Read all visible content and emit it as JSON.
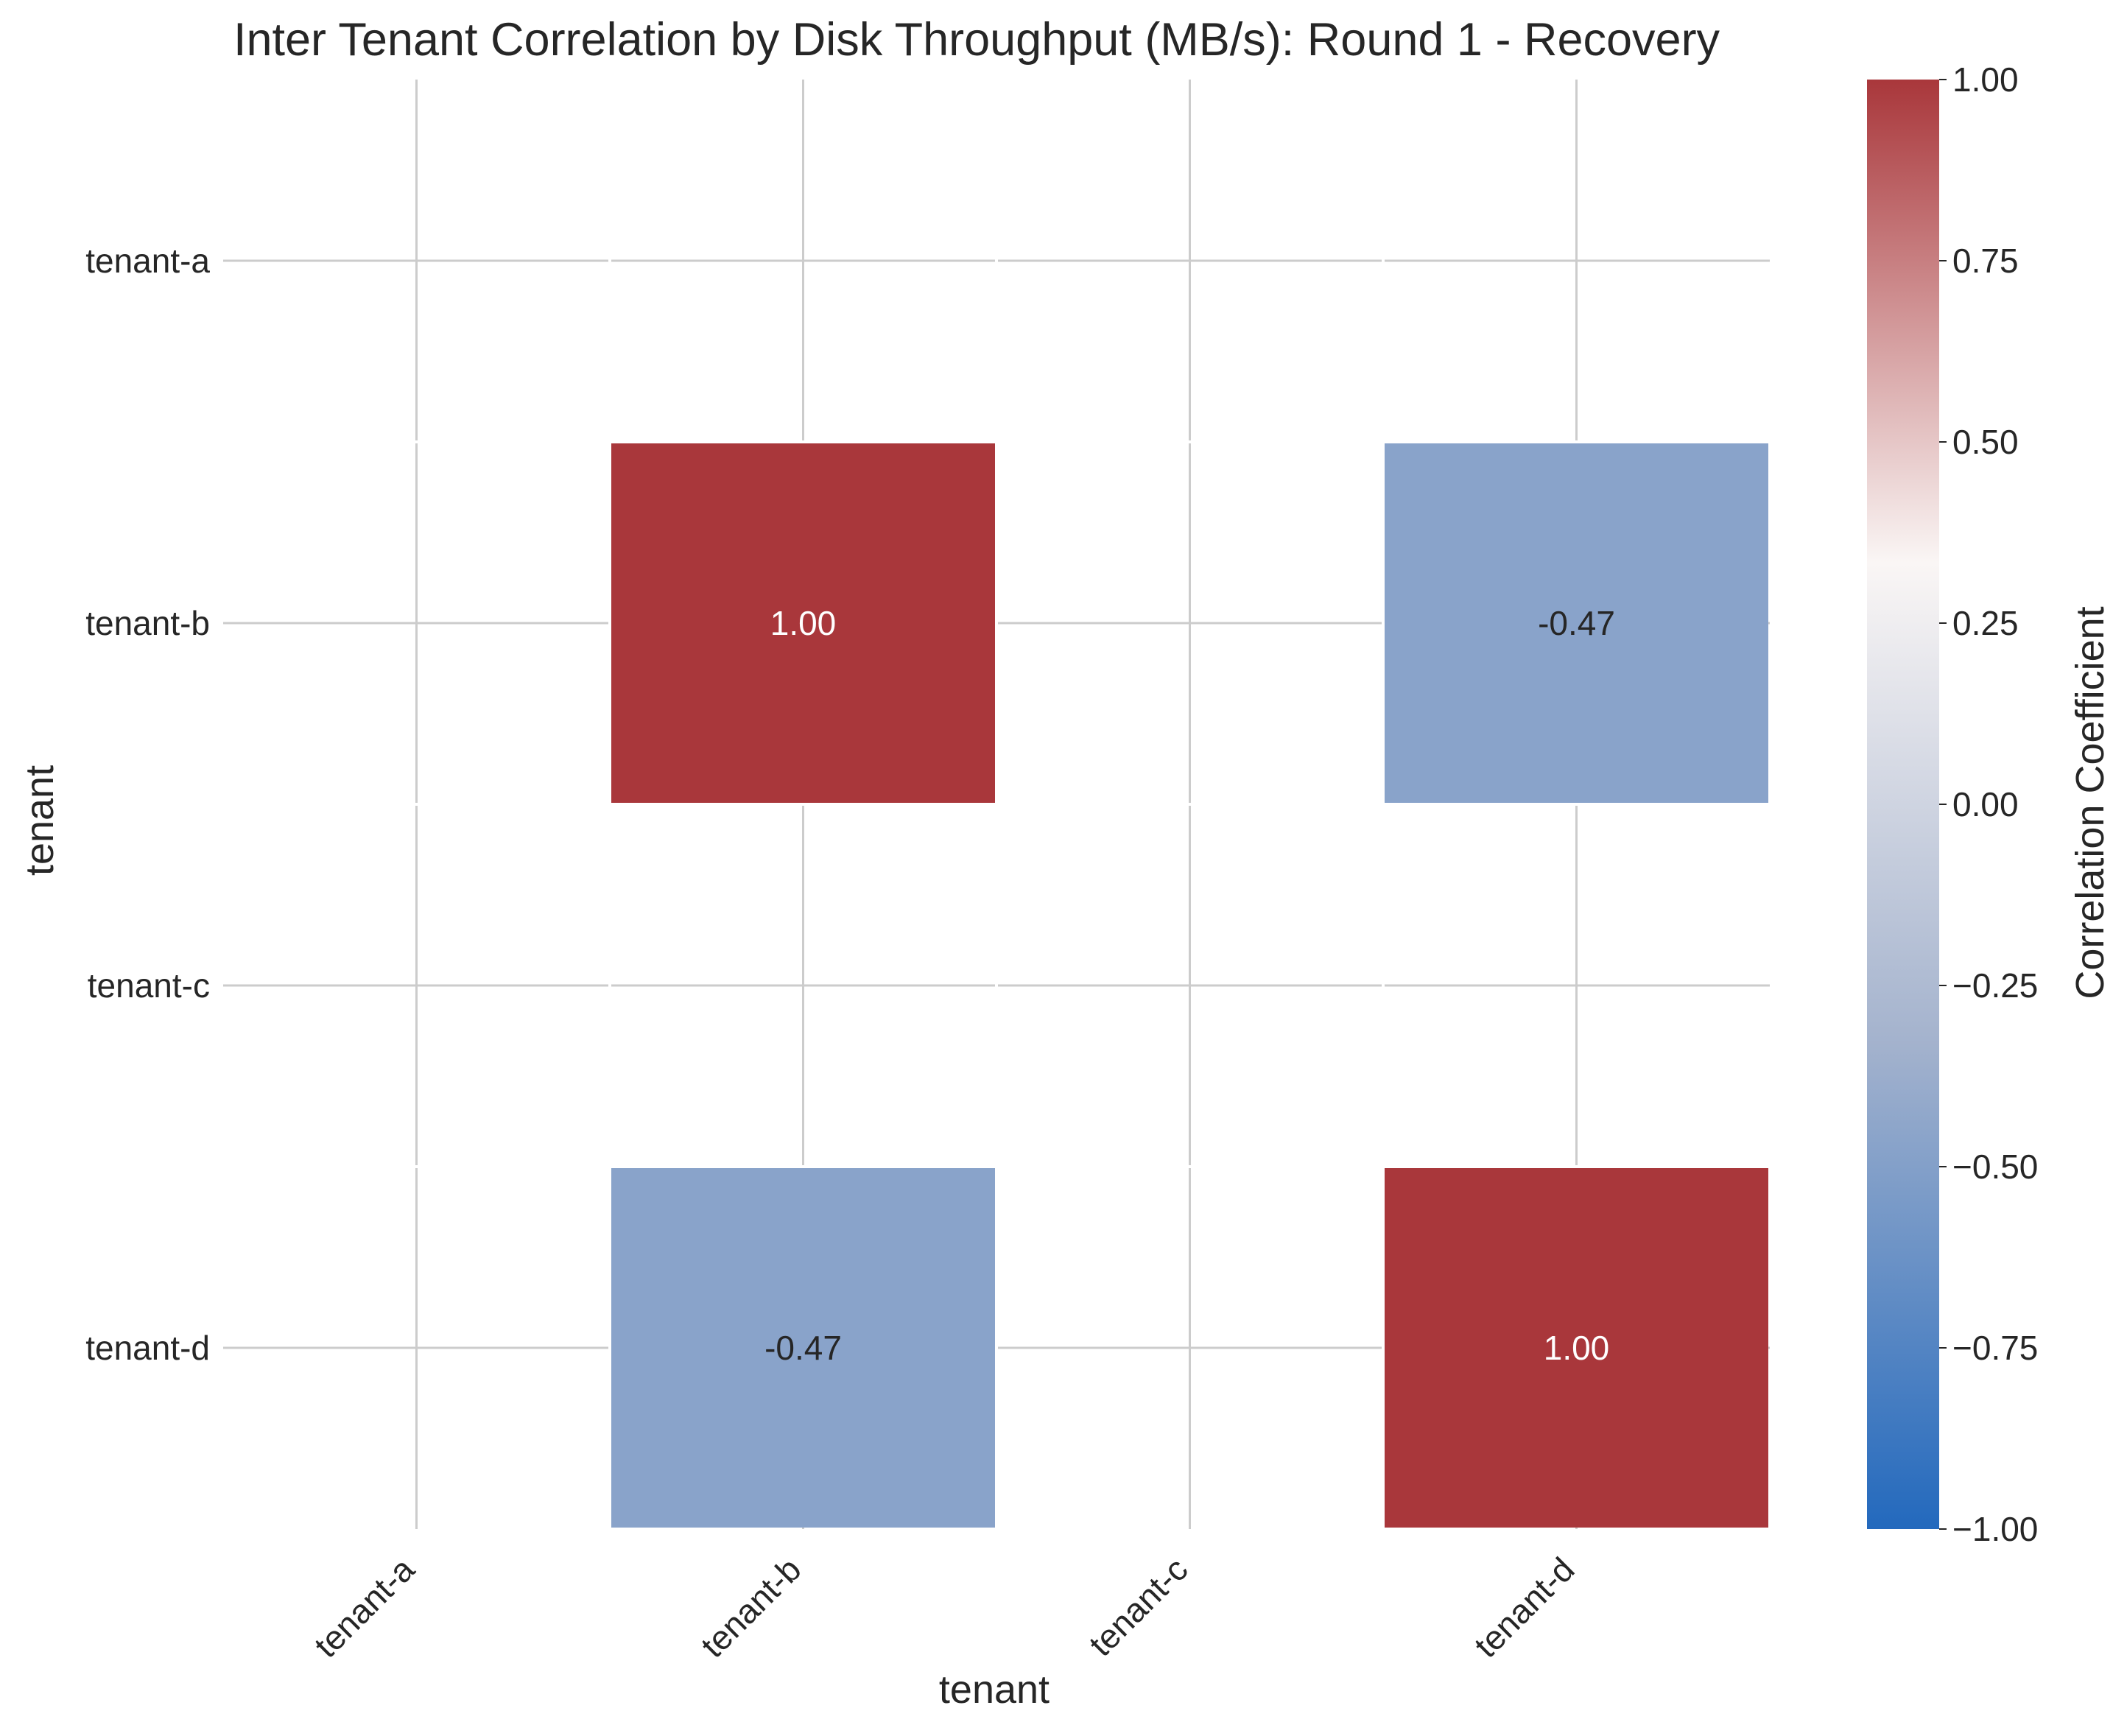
{
  "chart_data": {
    "type": "heatmap",
    "title": "Inter Tenant Correlation by Disk Throughput (MB/s): Round 1 - Recovery",
    "xlabel": "tenant",
    "ylabel": "tenant",
    "x_categories": [
      "tenant-a",
      "tenant-b",
      "tenant-c",
      "tenant-d"
    ],
    "y_categories": [
      "tenant-a",
      "tenant-b",
      "tenant-c",
      "tenant-d"
    ],
    "values": [
      [
        null,
        null,
        null,
        null
      ],
      [
        null,
        1.0,
        null,
        -0.47
      ],
      [
        null,
        null,
        null,
        null
      ],
      [
        null,
        -0.47,
        null,
        1.0
      ]
    ],
    "value_labels": [
      [
        null,
        null,
        null,
        null
      ],
      [
        null,
        "1.00",
        null,
        "-0.47"
      ],
      [
        null,
        null,
        null,
        null
      ],
      [
        null,
        "-0.47",
        null,
        "1.00"
      ]
    ],
    "colorbar": {
      "label": "Correlation Coefficient",
      "vmin": -1.0,
      "vmax": 1.0,
      "ticks": [
        1.0,
        0.75,
        0.5,
        0.25,
        0.0,
        -0.25,
        -0.5,
        -0.75,
        -1.0
      ],
      "tick_labels": [
        "1.00",
        "0.75",
        "0.50",
        "0.25",
        "0.00",
        "−0.25",
        "−0.50",
        "−0.75",
        "−1.00"
      ],
      "colormap": "vlag",
      "stops": [
        "#2369bd",
        "#a3b2cd",
        "#faf6f5",
        "#a9373b"
      ]
    },
    "grid": true
  }
}
